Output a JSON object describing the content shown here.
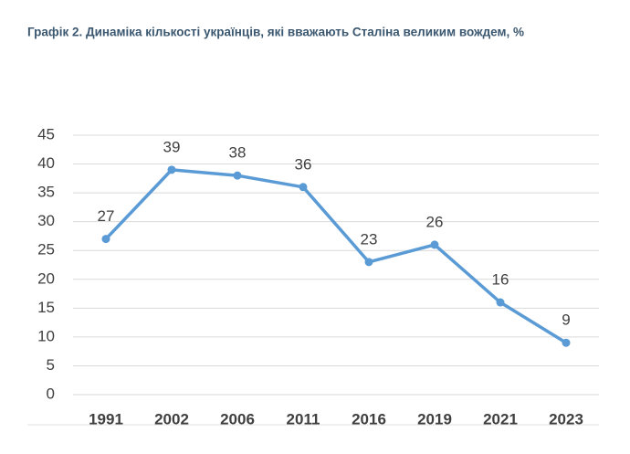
{
  "chart_data": {
    "type": "line",
    "title": "Графік 2. Динаміка кількості українців, які вважають Сталіна великим вождем, %",
    "categories": [
      "1991",
      "2002",
      "2006",
      "2011",
      "2016",
      "2019",
      "2021",
      "2023"
    ],
    "series": [
      {
        "name": "Вважають Сталіна великим вождем",
        "color": "#5b9bd5",
        "values": [
          27,
          39,
          38,
          36,
          23,
          26,
          16,
          9
        ]
      }
    ],
    "ylim": [
      0,
      45
    ],
    "yticks": [
      0,
      5,
      10,
      15,
      20,
      25,
      30,
      35,
      40,
      45
    ],
    "grid": true
  }
}
